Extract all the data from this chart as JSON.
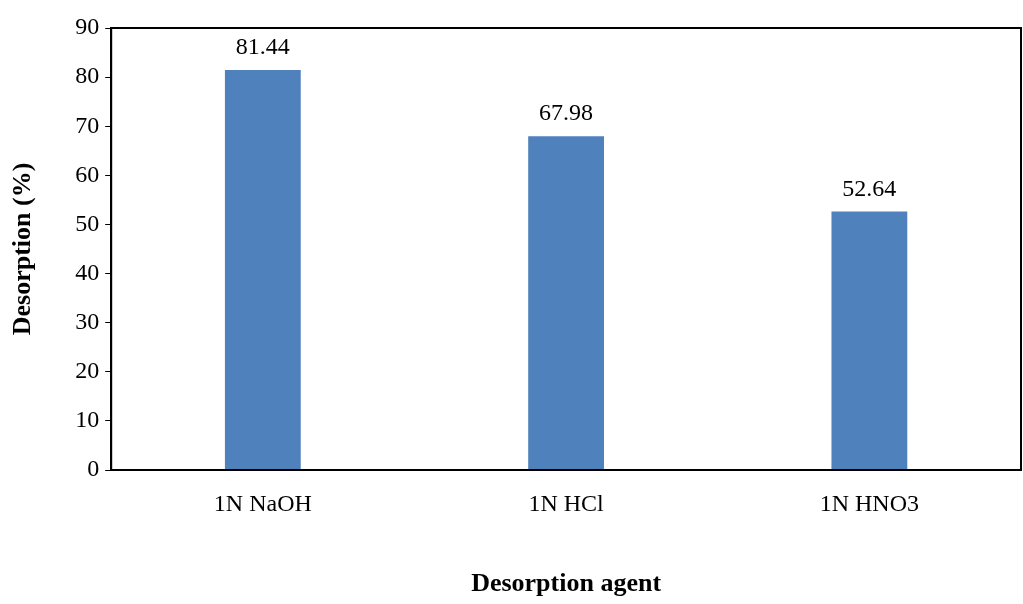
{
  "chart_data": {
    "type": "bar",
    "xlabel": "Desorption agent",
    "ylabel": "Desorption (%)",
    "categories": [
      "1N NaOH",
      "1N HCl",
      "1N HNO3"
    ],
    "values": [
      81.44,
      67.98,
      52.64
    ],
    "color": "#4f81bd",
    "ylim": [
      0,
      90
    ],
    "yticks": [
      0,
      10,
      20,
      30,
      40,
      50,
      60,
      70,
      80,
      90
    ],
    "grid": false,
    "legend": false,
    "data_labels": true
  }
}
